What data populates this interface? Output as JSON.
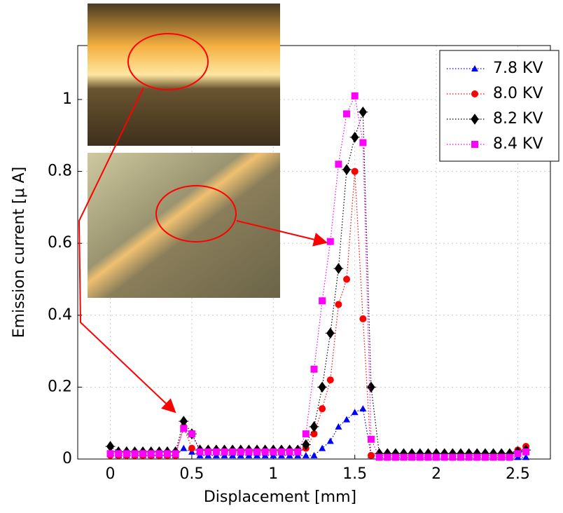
{
  "chart_data": {
    "type": "line",
    "xlabel": "Displacement [mm]",
    "ylabel": "Emission current [μ A]",
    "x": [
      0,
      0.05,
      0.1,
      0.15,
      0.2,
      0.25,
      0.3,
      0.35,
      0.4,
      0.45,
      0.5,
      0.55,
      0.6,
      0.65,
      0.7,
      0.75,
      0.8,
      0.85,
      0.9,
      0.95,
      1,
      1.05,
      1.1,
      1.15,
      1.2,
      1.25,
      1.3,
      1.35,
      1.4,
      1.45,
      1.5,
      1.55,
      1.6,
      1.65,
      1.7,
      1.75,
      1.8,
      1.85,
      1.9,
      1.95,
      2,
      2.05,
      2.1,
      2.15,
      2.2,
      2.25,
      2.3,
      2.35,
      2.4,
      2.45,
      2.5,
      2.55
    ],
    "series": [
      {
        "name": "7.8 KV",
        "color": "#0000ff",
        "marker": "triangle",
        "values": [
          0.02,
          0.01,
          0.01,
          0.01,
          0.01,
          0.01,
          0.01,
          0.01,
          0.01,
          0.03,
          0.02,
          0.01,
          0.01,
          0.01,
          0.01,
          0.01,
          0.01,
          0.01,
          0.01,
          0.01,
          0.01,
          0.01,
          0.01,
          0.01,
          0.01,
          0.01,
          0.03,
          0.05,
          0.09,
          0.11,
          0.13,
          0.14,
          0.01,
          0.005,
          0.005,
          0.005,
          0.005,
          0.005,
          0.005,
          0.005,
          0.005,
          0.005,
          0.005,
          0.005,
          0.005,
          0.005,
          0.005,
          0.005,
          0.005,
          0.005,
          0.005,
          0.005
        ]
      },
      {
        "name": "8.0 KV",
        "color": "#ff0000",
        "marker": "circle",
        "values": [
          0.01,
          0.01,
          0.01,
          0.01,
          0.01,
          0.01,
          0.01,
          0.01,
          0.01,
          0.09,
          0.03,
          0.02,
          0.02,
          0.02,
          0.02,
          0.02,
          0.02,
          0.02,
          0.02,
          0.02,
          0.02,
          0.02,
          0.02,
          0.02,
          0.03,
          0.07,
          0.14,
          0.22,
          0.43,
          0.5,
          0.8,
          0.39,
          0.01,
          0.01,
          0.01,
          0.01,
          0.01,
          0.01,
          0.01,
          0.01,
          0.01,
          0.01,
          0.01,
          0.01,
          0.01,
          0.01,
          0.01,
          0.01,
          0.01,
          0.01,
          0.025,
          0.035
        ]
      },
      {
        "name": "8.2 KV",
        "color": "#000000",
        "marker": "diamond",
        "values": [
          0.035,
          0.02,
          0.02,
          0.02,
          0.02,
          0.02,
          0.02,
          0.02,
          0.02,
          0.105,
          0.07,
          0.025,
          0.025,
          0.025,
          0.025,
          0.025,
          0.025,
          0.025,
          0.025,
          0.025,
          0.025,
          0.025,
          0.025,
          0.025,
          0.04,
          0.09,
          0.2,
          0.35,
          0.53,
          0.805,
          0.895,
          0.965,
          0.2,
          0.015,
          0.015,
          0.015,
          0.015,
          0.015,
          0.015,
          0.015,
          0.015,
          0.015,
          0.015,
          0.015,
          0.015,
          0.015,
          0.015,
          0.015,
          0.015,
          0.015,
          0.02,
          0.025
        ]
      },
      {
        "name": "8.4 KV",
        "color": "#ff00ff",
        "marker": "square",
        "values": [
          0.015,
          0.015,
          0.015,
          0.015,
          0.015,
          0.015,
          0.015,
          0.015,
          0.015,
          0.085,
          0.07,
          0.02,
          0.02,
          0.02,
          0.02,
          0.02,
          0.02,
          0.02,
          0.02,
          0.02,
          0.02,
          0.02,
          0.02,
          0.02,
          0.07,
          0.25,
          0.44,
          0.605,
          0.82,
          0.96,
          1.01,
          0.88,
          0.055,
          0.005,
          0.005,
          0.005,
          0.005,
          0.005,
          0.005,
          0.005,
          0.005,
          0.005,
          0.005,
          0.005,
          0.005,
          0.005,
          0.005,
          0.005,
          0.005,
          0.005,
          0.015,
          0.02
        ]
      }
    ],
    "xlim": [
      -0.2,
      2.7
    ],
    "ylim": [
      0,
      1.15
    ],
    "xticks": [
      0,
      0.5,
      1,
      1.5,
      2,
      2.5
    ],
    "yticks": [
      0,
      0.2,
      0.4,
      0.6,
      0.8,
      1
    ],
    "grid": true,
    "legend": "upper right"
  }
}
